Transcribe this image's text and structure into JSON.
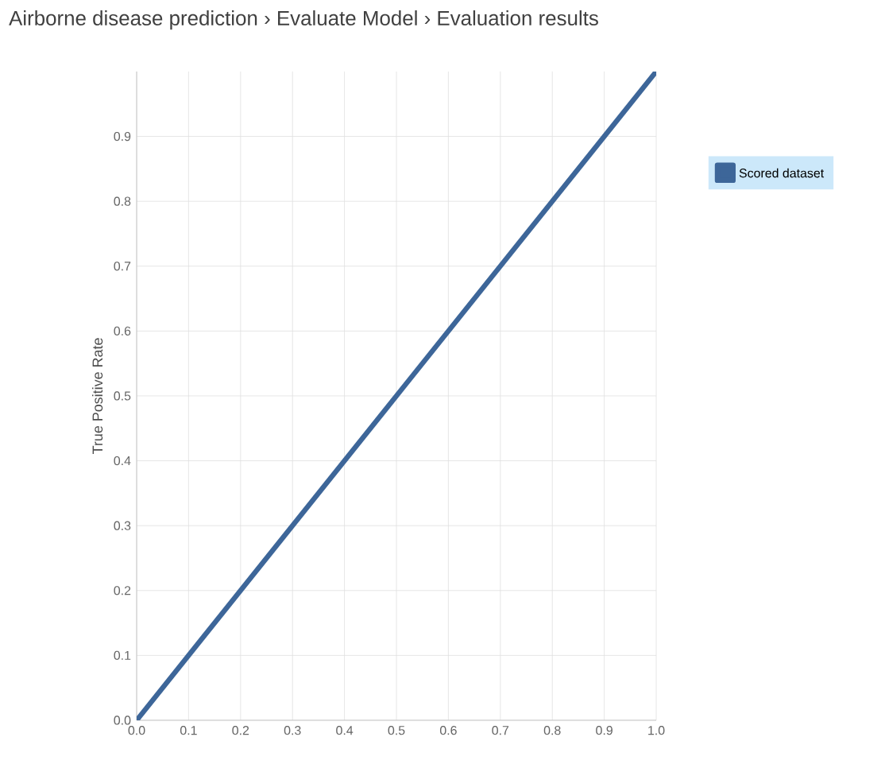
{
  "chart_data": {
    "type": "line",
    "title": "Airborne disease prediction › Evaluate Model › Evaluation results",
    "ylabel": "True Positive Rate",
    "x": [
      0,
      1
    ],
    "series": [
      {
        "name": "Scored dataset",
        "color": "#3d6699",
        "values": [
          0,
          1
        ]
      }
    ],
    "xlim": [
      0,
      1
    ],
    "ylim": [
      0,
      1
    ],
    "xticks": [
      {
        "value": 0,
        "label": "0.0"
      },
      0.1,
      0.2,
      0.3,
      0.4,
      0.5,
      0.6,
      0.7,
      0.8,
      0.9,
      {
        "value": 1,
        "label": "1.0"
      }
    ],
    "yticks": [
      {
        "value": 0,
        "label": "0.0"
      },
      0.1,
      0.2,
      0.3,
      0.4,
      0.5,
      0.6,
      0.7,
      0.8,
      0.9
    ],
    "grid": true,
    "legend": "top right",
    "marker": "none",
    "line_style": "solid"
  }
}
